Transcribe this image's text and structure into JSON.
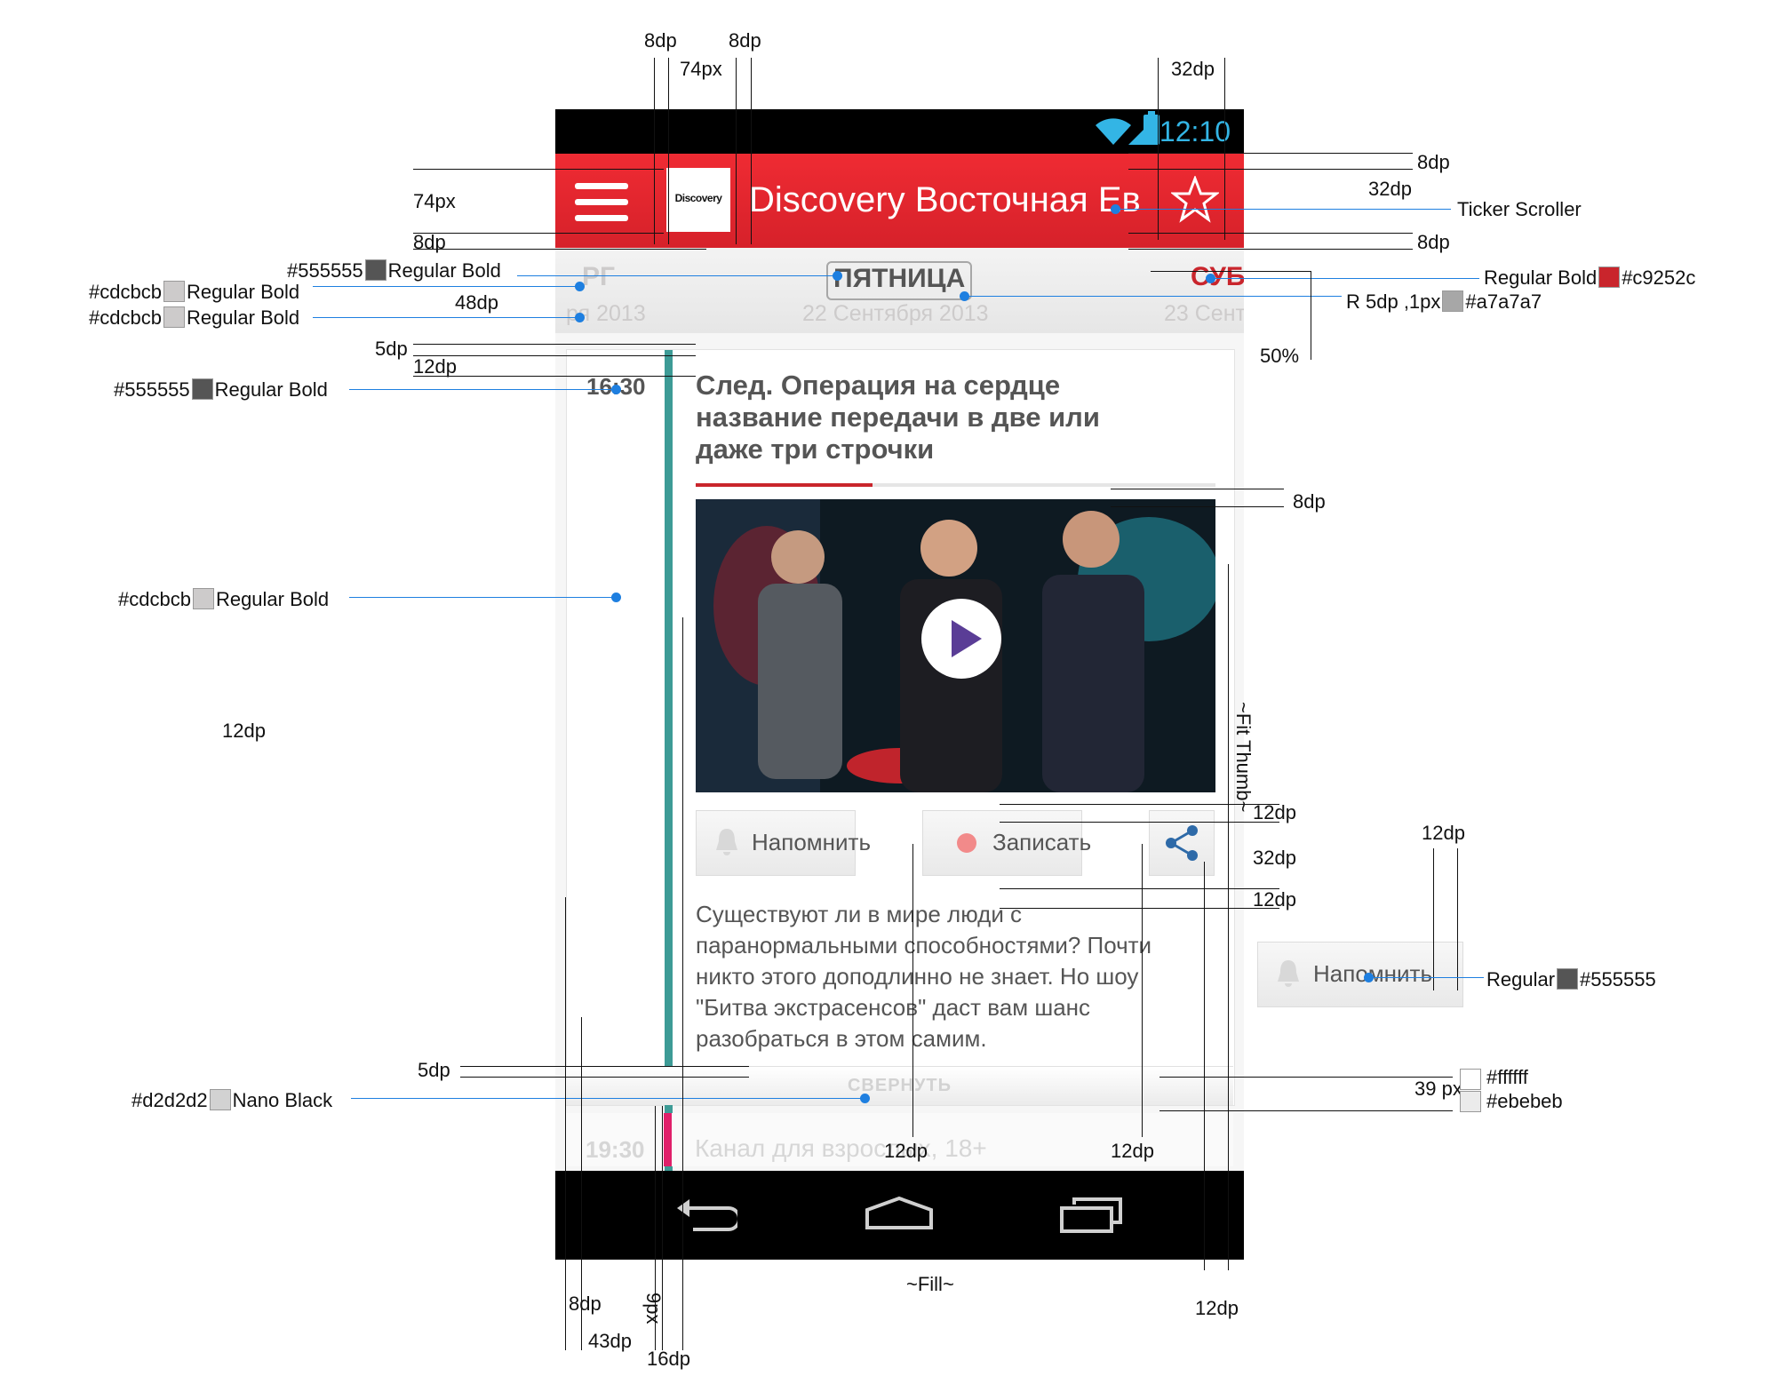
{
  "status_bar": {
    "time": "12:10"
  },
  "app_bar": {
    "logo_text": "Discovery",
    "title": "Discovery Восточная Ев"
  },
  "day_strip": {
    "prev": {
      "name": "РГ",
      "date": "ря 2013"
    },
    "current": {
      "name": "ПЯТНИЦА",
      "date": "22 Сентября 2013"
    },
    "next": {
      "name": "СУБ",
      "date": "23 Сент"
    }
  },
  "program": {
    "time": "16:30",
    "title": "След. Операция на сердце название передачи в две или даже три строчки",
    "progress": 0.34,
    "remind_label": "Напомнить",
    "record_label": "Записать",
    "description": "Существуют ли в мире люди с паранормальными способностями? Почти никто этого доподлинно не знает. Но шоу \"Битва экстрасенсов\" даст вам шанс разобраться в этом самим.",
    "collapse_label": "СВЕРНУТЬ"
  },
  "next_program": {
    "time": "19:30",
    "title": "Канал для взрослых, 18+"
  },
  "sample_button": {
    "label": "Напомнить"
  },
  "colors": {
    "accent": "#c9252c",
    "text_dark": "#555555",
    "text_light": "#cdcbcb",
    "border": "#a7a7a7",
    "collapse_text": "#d2d2d2",
    "gradient_top": "#ffffff",
    "gradient_bottom": "#ebebeb",
    "timeline": "#3d9b96",
    "status_blue": "#33b5e5"
  },
  "annotations": {
    "top_8dp_a": "8dp",
    "top_74px": "74px",
    "top_8dp_b": "8dp",
    "top_32dp": "32dp",
    "left_74px": "74px",
    "left_8dp": "8dp",
    "appbar_8dp_a": "8dp",
    "appbar_32dp": "32dp",
    "ticker": "Ticker Scroller",
    "appbar_8dp_b": "8dp",
    "day_555_hex": "#555555",
    "day_555_font": "Regular Bold",
    "day_cd1_hex": "#cdcbcb",
    "day_cd1_font": "Regular Bold",
    "day_48dp": "48dp",
    "day_cd2_hex": "#cdcbcb",
    "day_cd2_font": "Regular Bold",
    "red_font": "Regular Bold",
    "red_hex": "#c9252c",
    "border_font": "R 5dp ,1px",
    "border_hex": "#a7a7a7",
    "pct_50": "50%",
    "gap_5dp": "5dp",
    "gap_12dp": "12dp",
    "time_hex": "#555555",
    "time_font": "Regular Bold",
    "title_8dp": "8dp",
    "cd3_hex": "#cdcbcb",
    "cd3_font": "Regular Bold",
    "fit_thumb": "~Fit Thumb~",
    "left_12dp": "12dp",
    "btn_12dp_a": "12dp",
    "btn_32dp": "32dp",
    "btn_12dp_b": "12dp",
    "sample_12dp": "12dp",
    "sample_font": "Regular",
    "sample_hex": "#555555",
    "collapse_5dp": "5dp",
    "collapse_hex": "#d2d2d2",
    "collapse_font": "Nano Black",
    "grad_white": "#ffffff",
    "grad_gray": "#ebebeb",
    "grad_39px": "39 px",
    "bottom_12dp_a": "12dp",
    "bottom_12dp_b": "12dp",
    "fill": "~Fill~",
    "bottom_8dp": "8dp",
    "bottom_9px": "9px",
    "bottom_43dp": "43dp",
    "bottom_16dp": "16dp",
    "bottom_12dp_c": "12dp"
  }
}
